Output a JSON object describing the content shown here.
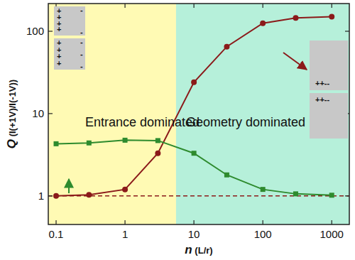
{
  "chart_data": {
    "type": "line",
    "x_label": "n (L/r)",
    "y_label": "Q (I(+1V)/I(-1V))",
    "log": true,
    "x": [
      0.1,
      0.3,
      1,
      3,
      10,
      30,
      100,
      300,
      1000
    ],
    "series": [
      {
        "color": "#8b1a1a",
        "marker": "circle",
        "line_style": "solid",
        "values": [
          1.0,
          1.03,
          1.2,
          3.3,
          24,
          65,
          125,
          145,
          150
        ]
      },
      {
        "color": "#2e8b2e",
        "marker": "square",
        "line_style": "solid",
        "values": [
          4.3,
          4.4,
          4.75,
          4.7,
          3.3,
          1.8,
          1.2,
          1.06,
          1.02
        ]
      }
    ],
    "xlim": [
      0.077,
      1800
    ],
    "xticks": [
      0.1,
      1,
      10,
      100,
      1000
    ],
    "ylim": [
      0.45,
      217
    ],
    "yticks": [
      1,
      10,
      100
    ],
    "reference_line": {
      "y": 1,
      "color": "#8b1a1a",
      "line_style": "dashed"
    },
    "regions": [
      {
        "label": "Entrance dominated",
        "xlim": [
          0.077,
          5.5
        ],
        "color": "#fffab4"
      },
      {
        "label": "Geometry dominated",
        "xlim": [
          5.5,
          1800
        ],
        "color": "#b6f0da"
      }
    ],
    "insets": [
      {
        "panels": [
          {
            "plus": [
              "+",
              "+",
              "+",
              "+"
            ],
            "minus": [
              "-",
              "-"
            ]
          },
          {
            "plus": [
              "+",
              "+",
              "+",
              "+"
            ],
            "minus": [
              "-",
              "-",
              "-"
            ]
          }
        ]
      },
      {
        "panels": [
          {
            "text": "++--"
          },
          {
            "text": "++--"
          }
        ]
      }
    ]
  }
}
